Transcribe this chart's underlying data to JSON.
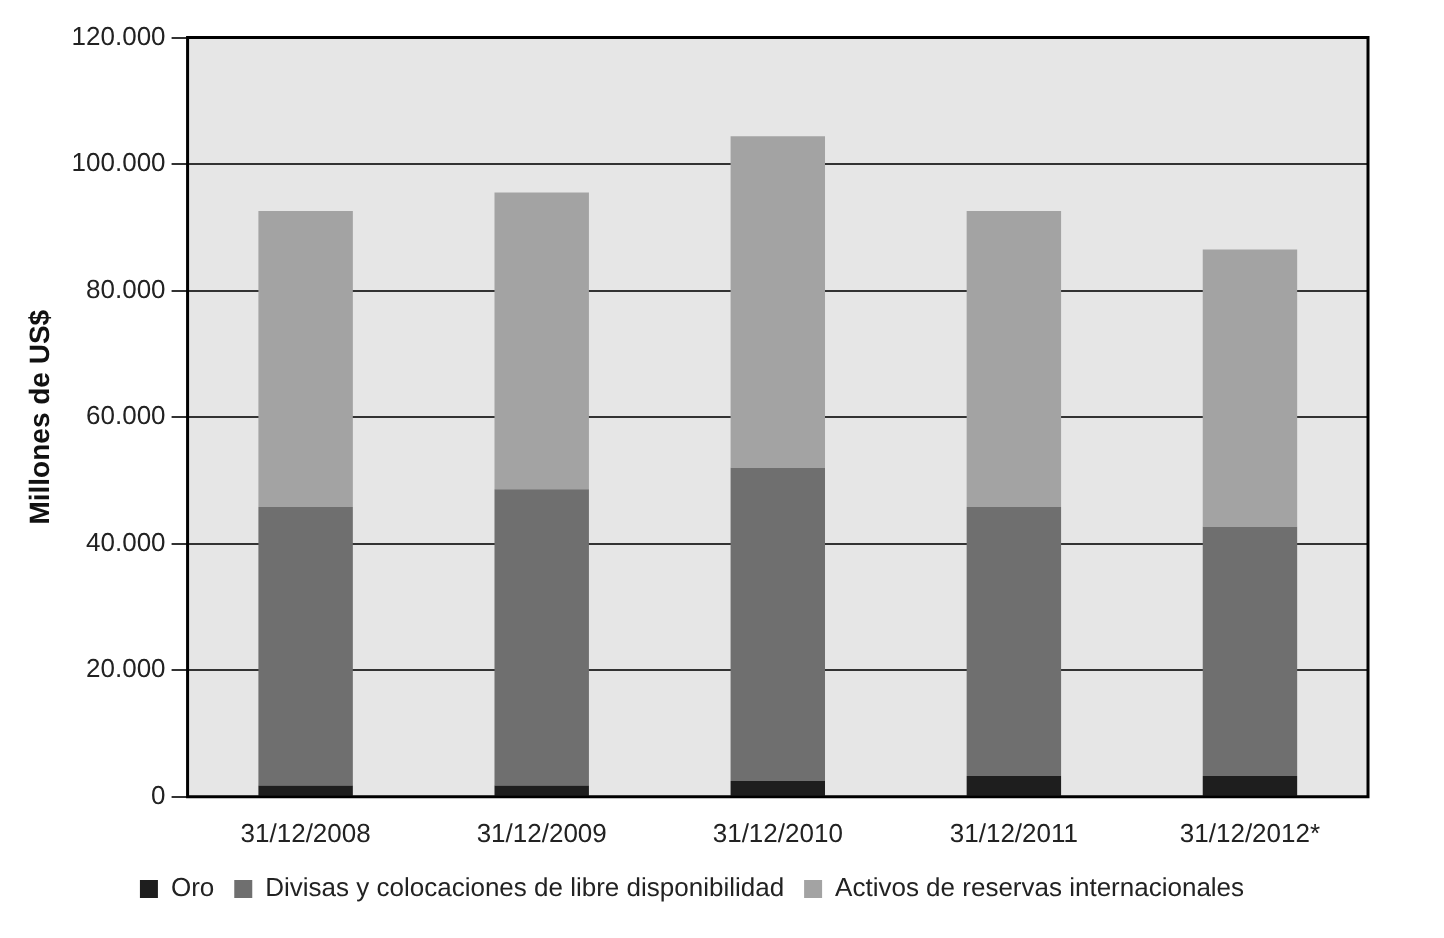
{
  "chart_data": {
    "type": "bar",
    "ylabel": "Millones de US$",
    "categories": [
      "31/12/2008",
      "31/12/2009",
      "31/12/2010",
      "31/12/2011",
      "31/12/2012*"
    ],
    "stacked": true,
    "series": [
      {
        "name": "Oro",
        "color": "#1e1e1e",
        "values": [
          1800,
          1800,
          2500,
          3300,
          3300
        ]
      },
      {
        "name": "Divisas y colocaciones de libre disponibilidad",
        "color": "#6f6f6f",
        "values": [
          44000,
          46800,
          49500,
          42500,
          39400
        ]
      },
      {
        "name": "Activos de reservas internacionales",
        "color": "#a3a3a3",
        "values": [
          46800,
          46900,
          52400,
          46800,
          43800
        ]
      }
    ],
    "ylim": [
      0,
      120000
    ],
    "yticks": [
      {
        "value": 0,
        "label": "0"
      },
      {
        "value": 20000,
        "label": "20.000"
      },
      {
        "value": 40000,
        "label": "40.000"
      },
      {
        "value": 60000,
        "label": "60.000"
      },
      {
        "value": 80000,
        "label": "80.000"
      },
      {
        "value": 100000,
        "label": "100.000"
      },
      {
        "value": 120000,
        "label": "120.000"
      }
    ],
    "grid": "y",
    "legend": "bottom"
  }
}
